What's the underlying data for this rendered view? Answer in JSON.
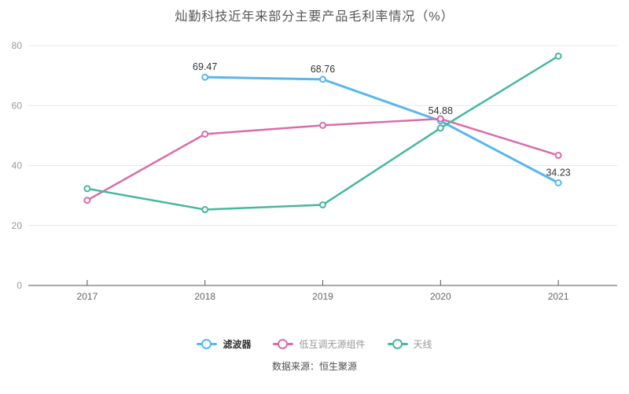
{
  "source": "数据来源：恒生聚源",
  "colors": {
    "background": "#ffffff",
    "grid": "#e2e9f3",
    "axis": "#55555e",
    "x_label": "#666666",
    "y_label": "#999999",
    "data_label": "#333333",
    "legend_active": "#333333",
    "legend_inactive": "#999999"
  },
  "chart_data": {
    "type": "line",
    "title": "灿勤科技近年来部分主要产品毛利率情况（%）",
    "categories": [
      "2017",
      "2018",
      "2019",
      "2020",
      "2021"
    ],
    "xlabel": "",
    "ylabel": "",
    "ylim": [
      0,
      80
    ],
    "y_ticks": [
      0,
      20,
      40,
      60,
      80
    ],
    "grid": true,
    "legend_position": "bottom",
    "marker_style": "hollow-circle",
    "series": [
      {
        "name": "滤波器",
        "color": "#58b7ec",
        "line_width": 3,
        "emphasized": true,
        "values": [
          null,
          69.47,
          68.76,
          54.88,
          34.23
        ],
        "labels": [
          "",
          "69.47",
          "68.76",
          "54.88",
          "34.23"
        ]
      },
      {
        "name": "低互调无源组件",
        "color": "#da6da8",
        "line_width": 2.5,
        "emphasized": false,
        "values": [
          28.4,
          50.5,
          53.4,
          55.6,
          43.4
        ],
        "labels": null
      },
      {
        "name": "天线",
        "color": "#47b79e",
        "line_width": 2.5,
        "emphasized": false,
        "values": [
          32.3,
          25.3,
          26.9,
          52.5,
          76.5
        ],
        "labels": null
      }
    ]
  }
}
